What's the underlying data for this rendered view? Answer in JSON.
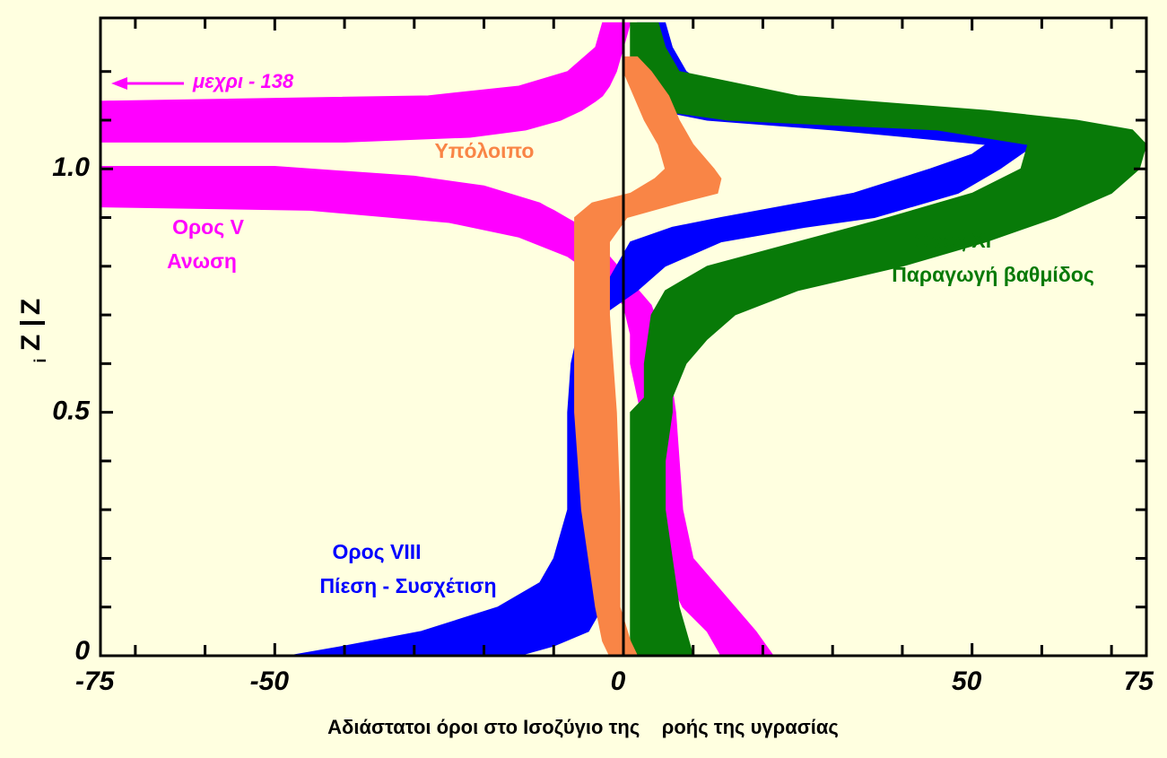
{
  "chart_data": {
    "type": "band",
    "xlabel": "Αδιάστατοι όροι στο Ισοζύγιο της    ροής της υγρασίας",
    "ylabel": {
      "numerator": "Z",
      "denominator": "Z",
      "subscript": "i"
    },
    "xlim": [
      -75,
      75
    ],
    "ylim": [
      0,
      1.31
    ],
    "xticks": [
      -75,
      -50,
      0,
      50,
      75
    ],
    "xminor_ticks": [
      -70,
      -60,
      -40,
      -30,
      -20,
      -10,
      10,
      20,
      30,
      40,
      60,
      70
    ],
    "yticks": [
      0,
      0.5,
      {
        "value": 1,
        "label": "1.0"
      }
    ],
    "yminor_ticks": [
      0.1,
      0.2,
      0.3,
      0.4,
      0.6,
      0.7,
      0.8,
      0.9,
      1.1,
      1.2
    ],
    "annotation": {
      "text": "μεχρι - 138"
    },
    "series": [
      {
        "name": "Ορος V",
        "description": "Ανωση",
        "color": "#ff00ff",
        "y": [
          1.3,
          1.25,
          1.2,
          1.17,
          1.15,
          1.139,
          1.12,
          1.1,
          1.08,
          1.065,
          1.055,
          null,
          1.005,
          0.985,
          0.965,
          0.93,
          0.922,
          0.915,
          0.89,
          0.86,
          0.82,
          0.77,
          0.72,
          0.66,
          0.6,
          0.5,
          0.4,
          0.3,
          0.2,
          0.1,
          0.05,
          0
        ],
        "low": [
          -3,
          -4,
          -8,
          -15,
          -28,
          -75,
          -75,
          -75,
          -75,
          -75,
          -75,
          null,
          -75,
          -75,
          -75,
          -75,
          -75,
          -45,
          -25,
          -15,
          -8,
          -3,
          0,
          1,
          1,
          2.5,
          3,
          3,
          5,
          8.5,
          12,
          14
        ],
        "high": [
          1,
          0,
          -1,
          -2,
          -3,
          -4,
          -6,
          -9,
          -14,
          -22,
          -40,
          null,
          -50,
          -30,
          -20,
          -12,
          -11,
          -10,
          -7,
          -4.5,
          -2,
          1,
          4,
          5.5,
          6.5,
          7.5,
          8,
          8.5,
          10,
          16,
          19,
          21.5
        ]
      },
      {
        "name": "Ορος VIII",
        "description": "Πίεση - Συσχέτιση",
        "color": "#0000ff",
        "y": [
          1.3,
          1.25,
          1.2,
          1.17,
          1.14,
          1.12,
          1.1,
          1.08,
          1.05,
          1.03,
          1.0,
          0.95,
          0.9,
          0.88,
          0.85,
          0.8,
          0.75,
          0.7,
          0.6,
          0.5,
          0.4,
          0.3,
          0.2,
          0.15,
          0.1,
          0.05,
          0.02,
          0
        ],
        "low": [
          2,
          2,
          2,
          2,
          3,
          5,
          12,
          30,
          52,
          50,
          44,
          33,
          14,
          7,
          1,
          -1,
          -3,
          -6,
          -7.5,
          -8,
          -8,
          -8,
          -10,
          -12,
          -18,
          -29,
          -40,
          -48
        ],
        "high": [
          6,
          7,
          9,
          12,
          30,
          50,
          56,
          58,
          59,
          57,
          54,
          48,
          36,
          26,
          14,
          6,
          2,
          -3,
          -4,
          -4.5,
          -4.5,
          -4,
          -4,
          -3.5,
          -3,
          -5,
          -10,
          -15
        ]
      },
      {
        "name": "Ορος XI",
        "description": "Παραγωγή βαθμίδος",
        "color": "#087a08",
        "y": [
          1.3,
          1.25,
          1.2,
          1.15,
          1.12,
          1.1,
          1.08,
          1.05,
          1.0,
          0.95,
          0.9,
          0.85,
          0.8,
          0.75,
          0.7,
          0.65,
          0.6,
          0.53,
          0.5,
          0.4,
          0.3,
          0.2,
          0.1,
          0
        ],
        "low": [
          1,
          1,
          1,
          2,
          5,
          15,
          45,
          58,
          57,
          50,
          38,
          25,
          12,
          6,
          4,
          3.5,
          3,
          3,
          1,
          1,
          1,
          1,
          1,
          1
        ],
        "high": [
          5,
          6,
          8,
          25,
          52,
          65,
          73,
          75,
          74,
          70,
          62,
          52,
          40,
          25,
          16,
          12,
          9,
          7,
          7,
          6,
          6,
          7,
          8,
          10
        ]
      },
      {
        "name": "Υπόλοιπο",
        "color": "#f98546",
        "y": [
          1.23,
          1.2,
          1.15,
          1.1,
          1.05,
          1.0,
          0.98,
          0.95,
          0.93,
          0.9,
          0.85,
          0.7,
          0.5,
          0.3,
          0.1,
          0.03,
          0
        ],
        "low": [
          0,
          0,
          1.5,
          3,
          5,
          6,
          4.5,
          1,
          -4.5,
          -7,
          -7,
          -7,
          -7,
          -6,
          -4,
          -3,
          -2
        ],
        "high": [
          2,
          4,
          6.5,
          8,
          10,
          13,
          14,
          13.5,
          8,
          0.5,
          -2,
          -2,
          -1,
          -0.5,
          -0.5,
          1,
          2
        ]
      }
    ]
  }
}
